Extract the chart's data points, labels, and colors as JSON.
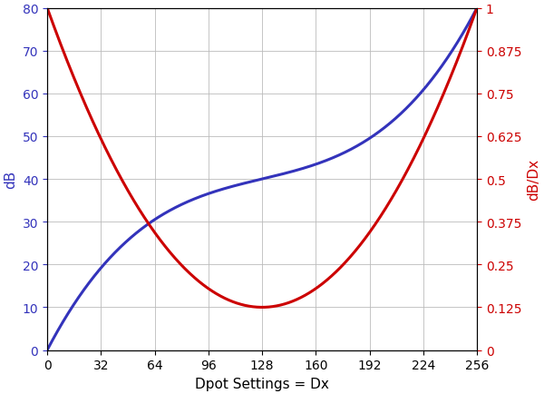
{
  "xlabel": "Dpot Settings = Dx",
  "ylabel_left": "dB",
  "ylabel_right": "dB/Dx",
  "xlim": [
    0,
    256
  ],
  "ylim_left": [
    0,
    80
  ],
  "ylim_right": [
    0,
    1
  ],
  "xticks": [
    0,
    32,
    64,
    96,
    128,
    160,
    192,
    224,
    256
  ],
  "yticks_left": [
    0,
    10,
    20,
    30,
    40,
    50,
    60,
    70,
    80
  ],
  "yticks_right": [
    0,
    0.125,
    0.25,
    0.375,
    0.5,
    0.625,
    0.75,
    0.875,
    1.0
  ],
  "ytick_labels_right": [
    "0",
    "0.125",
    "0.25",
    "0.375",
    "0.5",
    "0.625",
    "0.75",
    "0.875",
    "1"
  ],
  "blue_color": "#3333bb",
  "red_color": "#cc0000",
  "linewidth": 2.2,
  "figsize": [
    6.0,
    4.35
  ],
  "dpi": 100,
  "grid_color": "#bbbbbb",
  "grid_linewidth": 0.6,
  "background_color": "#ffffff",
  "label_fontsize": 11,
  "tick_fontsize": 10
}
